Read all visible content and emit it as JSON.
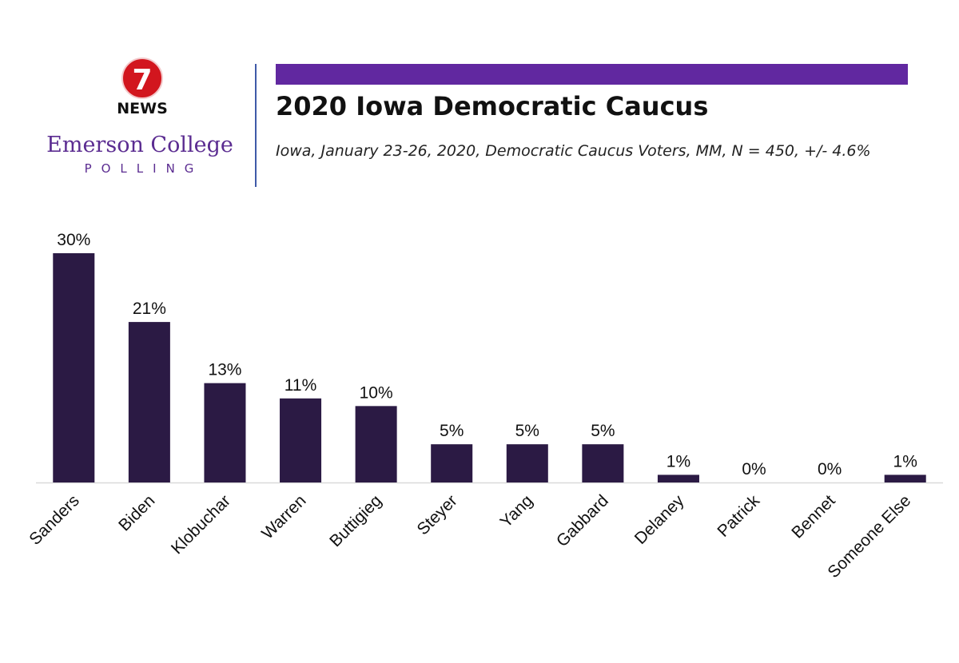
{
  "branding": {
    "news_number": "7",
    "news_label": "NEWS",
    "college_name": "Emerson College",
    "polling_label": "POLLING"
  },
  "colors": {
    "accent": "#6128a0",
    "bar": "#2b1a44",
    "divider": "#3f5aa8",
    "brand": "#5b2c91",
    "logo_red": "#d2161e"
  },
  "header": {
    "title": "2020 Iowa Democratic Caucus",
    "subtitle": "Iowa, January 23-26, 2020, Democratic Caucus Voters, MM, N = 450, +/- 4.6%"
  },
  "chart_data": {
    "type": "bar",
    "title": "2020 Iowa Democratic Caucus",
    "xlabel": "",
    "ylabel": "",
    "categories": [
      "Sanders",
      "Biden",
      "Klobuchar",
      "Warren",
      "Buttigieg",
      "Steyer",
      "Yang",
      "Gabbard",
      "Delaney",
      "Patrick",
      "Bennet",
      "Someone Else"
    ],
    "values": [
      30,
      21,
      13,
      11,
      10,
      5,
      5,
      5,
      1,
      0,
      0,
      1
    ],
    "data_labels": [
      "30%",
      "21%",
      "13%",
      "11%",
      "10%",
      "5%",
      "5%",
      "5%",
      "1%",
      "0%",
      "0%",
      "1%"
    ],
    "ylim": [
      0,
      30
    ],
    "grid": false,
    "legend": "none"
  }
}
